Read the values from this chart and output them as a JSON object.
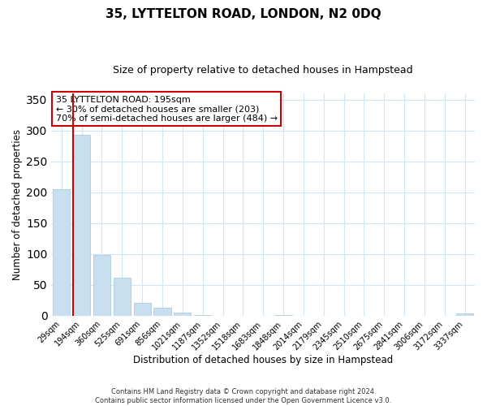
{
  "title": "35, LYTTELTON ROAD, LONDON, N2 0DQ",
  "subtitle": "Size of property relative to detached houses in Hampstead",
  "xlabel": "Distribution of detached houses by size in Hampstead",
  "ylabel": "Number of detached properties",
  "bar_labels": [
    "29sqm",
    "194sqm",
    "360sqm",
    "525sqm",
    "691sqm",
    "856sqm",
    "1021sqm",
    "1187sqm",
    "1352sqm",
    "1518sqm",
    "1683sqm",
    "1848sqm",
    "2014sqm",
    "2179sqm",
    "2345sqm",
    "2510sqm",
    "2675sqm",
    "2841sqm",
    "3006sqm",
    "3172sqm",
    "3337sqm"
  ],
  "bar_values": [
    205,
    293,
    98,
    61,
    21,
    13,
    5,
    1,
    0,
    0,
    0,
    1,
    0,
    0,
    0,
    0,
    0,
    0,
    0,
    0,
    3
  ],
  "bar_color": "#c8dff0",
  "bar_edge_color": "#a0c4e0",
  "highlight_color": "#cc0000",
  "property_label": "35 LYTTELTON ROAD: 195sqm",
  "annotation_line1": "← 30% of detached houses are smaller (203)",
  "annotation_line2": "70% of semi-detached houses are larger (484) →",
  "annotation_box_color": "#ffffff",
  "annotation_box_edge": "#cc0000",
  "ylim": [
    0,
    360
  ],
  "yticks": [
    0,
    50,
    100,
    150,
    200,
    250,
    300,
    350
  ],
  "footer_line1": "Contains HM Land Registry data © Crown copyright and database right 2024.",
  "footer_line2": "Contains public sector information licensed under the Open Government Licence v3.0.",
  "title_fontsize": 11,
  "subtitle_fontsize": 9,
  "background_color": "#ffffff",
  "grid_color": "#d0e8f5"
}
